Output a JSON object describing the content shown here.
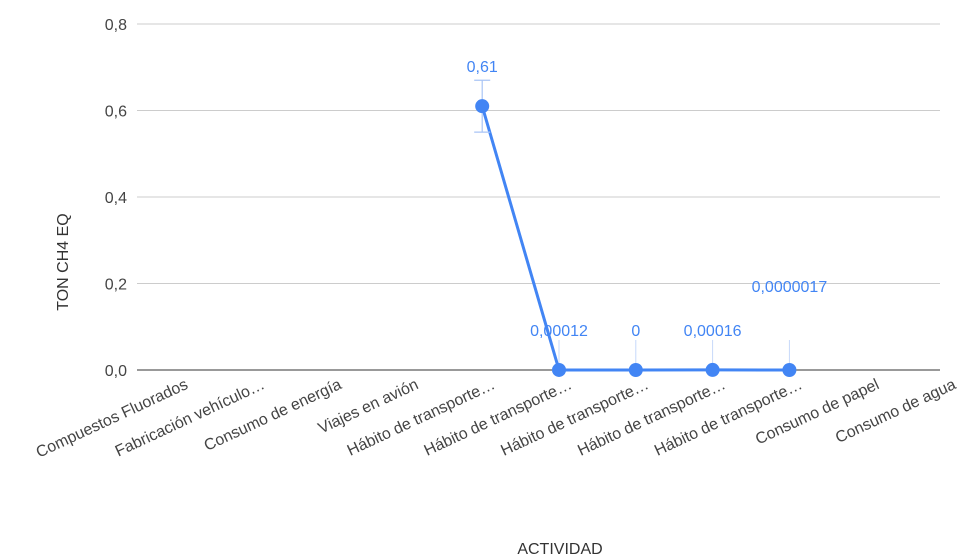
{
  "chart_data": {
    "type": "line",
    "xlabel": "ACTIVIDAD",
    "ylabel": "TON CH4 EQ",
    "ylim": [
      0,
      0.8
    ],
    "yticks": [
      "0,0",
      "0,2",
      "0,4",
      "0,6",
      "0,8"
    ],
    "ytick_values": [
      0,
      0.2,
      0.4,
      0.6,
      0.8
    ],
    "grid": true,
    "legend": "none",
    "categories": [
      "Compuestos Fluorados",
      "Fabricación vehículo…",
      "Consumo de energía",
      "Viajes en avión",
      "Hábito de transporte…",
      "Hábito de transporte…",
      "Hábito de transporte…",
      "Hábito de transporte…",
      "Hábito de transporte…",
      "Consumo de papel",
      "Consumo de agua"
    ],
    "series": [
      {
        "values": [
          null,
          null,
          null,
          null,
          0.61,
          0.00012,
          0,
          0.00016,
          1.7e-06,
          null,
          null
        ],
        "data_labels": [
          null,
          null,
          null,
          null,
          "0,61",
          "0,00012",
          "0",
          "0,00016",
          "0,0000017",
          null,
          null
        ],
        "error": [
          null,
          null,
          null,
          null,
          0.06,
          0,
          0,
          0,
          0,
          null,
          null
        ],
        "color": "#4285f4"
      }
    ]
  }
}
